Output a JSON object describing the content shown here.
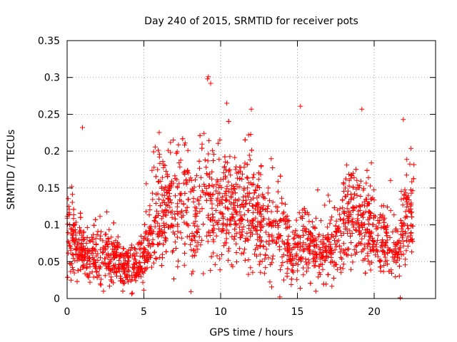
{
  "chart_data": {
    "type": "scatter",
    "title": "Day 240 of 2015, SRMTID for receiver pots",
    "xlabel": "GPS time / hours",
    "ylabel": "SRMTID / TECUs",
    "xlim": [
      0,
      24
    ],
    "ylim": [
      0,
      0.35
    ],
    "x_ticks": [
      0,
      5,
      10,
      15,
      20
    ],
    "x_tick_labels": [
      "0",
      "5",
      "10",
      "15",
      "20"
    ],
    "y_ticks": [
      0,
      0.05,
      0.1,
      0.15,
      0.2,
      0.25,
      0.3,
      0.35
    ],
    "y_tick_labels": [
      "0",
      "0.05",
      "0.1",
      "0.15",
      "0.2",
      "0.25",
      "0.3",
      "0.35"
    ],
    "grid": true,
    "marker": "+",
    "series": [
      {
        "name": "pots",
        "color": "#ff0000",
        "trend": {
          "x": [
            0,
            0.5,
            1,
            2,
            3,
            4,
            4.8,
            5.3,
            5.8,
            6.5,
            7.3,
            8,
            8.6,
            9.2,
            9.8,
            10.5,
            11.2,
            11.8,
            12.5,
            13.3,
            14,
            14.6,
            15.2,
            15.8,
            16.5,
            17.2,
            18,
            18.8,
            19.5,
            20.3,
            21,
            21.6,
            22.2,
            22.6
          ],
          "y": [
            0.085,
            0.075,
            0.065,
            0.058,
            0.055,
            0.045,
            0.05,
            0.075,
            0.115,
            0.125,
            0.13,
            0.12,
            0.115,
            0.14,
            0.12,
            0.13,
            0.115,
            0.125,
            0.1,
            0.095,
            0.09,
            0.06,
            0.075,
            0.07,
            0.06,
            0.07,
            0.1,
            0.11,
            0.1,
            0.09,
            0.07,
            0.065,
            0.115,
            0.12
          ]
        },
        "point_count": 2300,
        "notable_points": [
          {
            "x": 1.0,
            "y": 0.232
          },
          {
            "x": 9.2,
            "y": 0.301
          },
          {
            "x": 9.35,
            "y": 0.292
          },
          {
            "x": 10.4,
            "y": 0.265
          },
          {
            "x": 12.0,
            "y": 0.257
          },
          {
            "x": 15.2,
            "y": 0.261
          },
          {
            "x": 19.2,
            "y": 0.257
          },
          {
            "x": 21.9,
            "y": 0.243
          },
          {
            "x": 21.7,
            "y": 0.001
          }
        ]
      }
    ]
  }
}
